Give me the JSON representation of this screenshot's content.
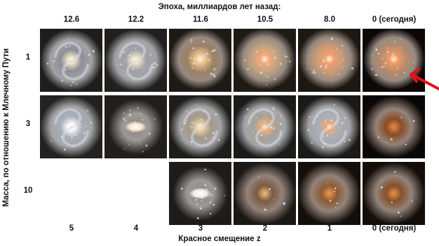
{
  "title": "Эпоха, миллиардов лет назад:",
  "epochs": [
    "12.6",
    "12.2",
    "11.6",
    "10.5",
    "8.0",
    "0 (сегодня)"
  ],
  "redshifts": [
    "5",
    "4",
    "3",
    "2",
    "1",
    "0 (сегодня)"
  ],
  "xaxis_title": "Красное смещение z",
  "yaxis_title": "Масса, по отношению к Млечному Пути",
  "mass_rows": [
    "1",
    "3",
    "10"
  ],
  "colors": {
    "arrow": "#e8101a",
    "background": "#ffffff"
  },
  "cells": [
    {
      "row": 0,
      "col": 0,
      "kind": "spiral",
      "core": "#f4e6c6",
      "disk": "#8c8f95",
      "bg": "#1e1d1b"
    },
    {
      "row": 0,
      "col": 1,
      "kind": "spiral",
      "core": "#f0e4c8",
      "disk": "#9ea1a8",
      "bg": "#22201d"
    },
    {
      "row": 0,
      "col": 2,
      "kind": "blob",
      "core": "#f0c690",
      "disk": "#9c8064",
      "bg": "#1e1a16"
    },
    {
      "row": 0,
      "col": 3,
      "kind": "blob",
      "core": "#f4a878",
      "disk": "#c0a282",
      "bg": "#201a15"
    },
    {
      "row": 0,
      "col": 4,
      "kind": "blob",
      "core": "#f0a070",
      "disk": "#c89a78",
      "bg": "#1e1813"
    },
    {
      "row": 0,
      "col": 5,
      "kind": "blob",
      "core": "#f09a68",
      "disk": "#b58a6c",
      "bg": "#0c0806"
    },
    {
      "row": 1,
      "col": 0,
      "kind": "spiral",
      "core": "#ffffff",
      "disk": "#a8b0ba",
      "bg": "#232220"
    },
    {
      "row": 1,
      "col": 1,
      "kind": "bar",
      "core": "#f4e6cc",
      "disk": "#8a8680",
      "bg": "#211f1c"
    },
    {
      "row": 1,
      "col": 2,
      "kind": "spiral",
      "core": "#f4d4a4",
      "disk": "#a49a8c",
      "bg": "#1f1d1a"
    },
    {
      "row": 1,
      "col": 3,
      "kind": "spiral",
      "core": "#f4b27a",
      "disk": "#a8a29a",
      "bg": "#1d1b19"
    },
    {
      "row": 1,
      "col": 4,
      "kind": "spiral",
      "core": "#f2a870",
      "disk": "#a8b0b8",
      "bg": "#1c1a18"
    },
    {
      "row": 1,
      "col": 5,
      "kind": "glow",
      "core": "#e8884c",
      "disk": "#8a4c26",
      "bg": "#0a0705"
    },
    {
      "row": 2,
      "col": 2,
      "kind": "bar",
      "core": "#f2f0ec",
      "disk": "#8a8680",
      "bg": "#1e1c1a"
    },
    {
      "row": 2,
      "col": 3,
      "kind": "glow",
      "core": "#f4c07a",
      "disk": "#7a5a40",
      "bg": "#1a1714"
    },
    {
      "row": 2,
      "col": 4,
      "kind": "glow",
      "core": "#f09a50",
      "disk": "#8c5a34",
      "bg": "#140f0b"
    },
    {
      "row": 2,
      "col": 5,
      "kind": "glow",
      "core": "#ee9048",
      "disk": "#84502a",
      "bg": "#120d09"
    }
  ]
}
